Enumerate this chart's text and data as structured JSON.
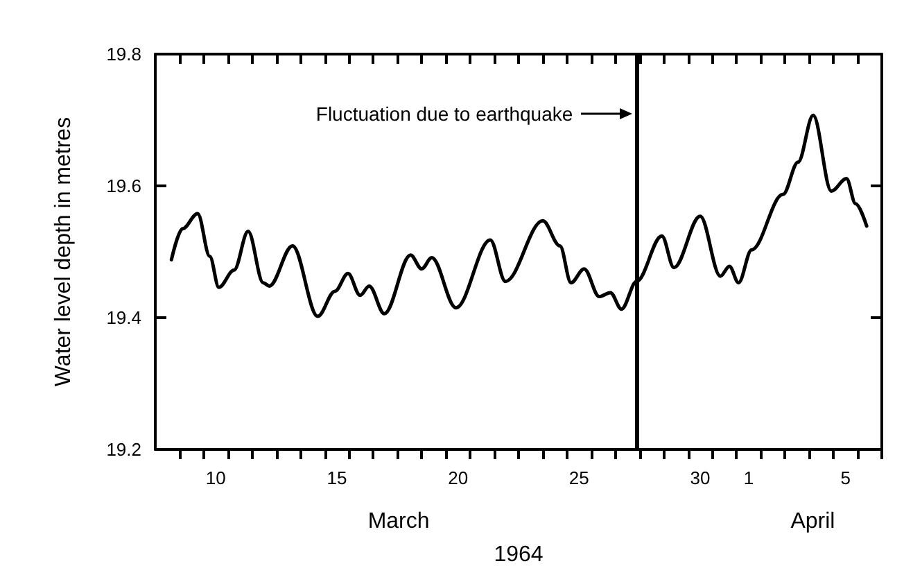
{
  "chart_data": {
    "type": "line",
    "ylabel": "Water level depth in metres",
    "xlabel": "1964",
    "annotations": [
      "Fluctuation due to earthquake",
      "March",
      "April"
    ],
    "x": [
      "1964-03-08T16:00",
      "1964-03-09T03:00",
      "1964-03-09T18:00",
      "1964-03-10T06:00",
      "1964-03-10T15:00",
      "1964-03-11T06:00",
      "1964-03-11T20:00",
      "1964-03-12T11:00",
      "1964-03-12T17:00",
      "1964-03-13T16:00",
      "1964-03-14T17:00",
      "1964-03-15T10:00",
      "1964-03-15T23:00",
      "1964-03-16T11:00",
      "1964-03-16T20:00",
      "1964-03-17T11:00",
      "1964-03-18T13:00",
      "1964-03-19T00:00",
      "1964-03-19T10:00",
      "1964-03-20T10:00",
      "1964-03-21T20:00",
      "1964-03-22T11:00",
      "1964-03-24T00:00",
      "1964-03-24T17:00",
      "1964-03-25T04:00",
      "1964-03-25T17:00",
      "1964-03-26T08:00",
      "1964-03-26T19:00",
      "1964-03-27T06:00",
      "1964-03-27T21:00",
      "1964-03-28T22:00",
      "1964-03-29T10:00",
      "1964-03-30T12:00",
      "1964-03-31T08:00",
      "1964-03-31T17:00",
      "1964-04-01T02:00",
      "1964-04-01T15:00",
      "1964-04-02T22:00",
      "1964-04-03T13:00",
      "1964-04-04T04:00",
      "1964-04-04T22:00",
      "1964-04-05T13:00",
      "1964-04-05T22:00",
      "1964-04-06T09:00"
    ],
    "series": [
      {
        "color": "#000000",
        "values": [
          19.488,
          19.535,
          19.558,
          19.493,
          19.446,
          19.472,
          19.531,
          19.453,
          19.448,
          19.509,
          19.402,
          19.44,
          19.467,
          19.434,
          19.448,
          19.406,
          19.495,
          19.474,
          19.491,
          19.415,
          19.518,
          19.455,
          19.547,
          19.509,
          19.453,
          19.474,
          19.432,
          19.438,
          19.413,
          19.455,
          19.524,
          19.476,
          19.554,
          19.463,
          19.478,
          19.453,
          19.503,
          19.587,
          19.636,
          19.707,
          19.592,
          19.611,
          19.573,
          19.539
        ]
      }
    ],
    "xlim": [
      "1964-03-08",
      "1964-04-07"
    ],
    "xticks": [
      {
        "value": "1964-03-09",
        "label": null
      },
      {
        "value": "1964-03-10",
        "label": null
      },
      {
        "value": "1964-03-10T12:00",
        "label": "10"
      },
      {
        "value": "1964-03-11",
        "label": null
      },
      {
        "value": "1964-03-12",
        "label": null
      },
      {
        "value": "1964-03-13",
        "label": null
      },
      {
        "value": "1964-03-14",
        "label": null
      },
      {
        "value": "1964-03-15",
        "label": null
      },
      {
        "value": "1964-03-15T12:00",
        "label": "15"
      },
      {
        "value": "1964-03-16",
        "label": null
      },
      {
        "value": "1964-03-17",
        "label": null
      },
      {
        "value": "1964-03-18",
        "label": null
      },
      {
        "value": "1964-03-19",
        "label": null
      },
      {
        "value": "1964-03-20",
        "label": null
      },
      {
        "value": "1964-03-20T12:00",
        "label": "20"
      },
      {
        "value": "1964-03-21",
        "label": null
      },
      {
        "value": "1964-03-22",
        "label": null
      },
      {
        "value": "1964-03-23",
        "label": null
      },
      {
        "value": "1964-03-24",
        "label": null
      },
      {
        "value": "1964-03-25",
        "label": null
      },
      {
        "value": "1964-03-25T12:00",
        "label": "25"
      },
      {
        "value": "1964-03-26",
        "label": null
      },
      {
        "value": "1964-03-27",
        "label": null
      },
      {
        "value": "1964-03-28",
        "label": null
      },
      {
        "value": "1964-03-29",
        "label": null
      },
      {
        "value": "1964-03-30",
        "label": null
      },
      {
        "value": "1964-03-30T12:00",
        "label": "30"
      },
      {
        "value": "1964-03-31",
        "label": null
      },
      {
        "value": "1964-04-01",
        "label": null
      },
      {
        "value": "1964-04-01T12:00",
        "label": "1"
      },
      {
        "value": "1964-04-02",
        "label": null
      },
      {
        "value": "1964-04-03",
        "label": null
      },
      {
        "value": "1964-04-04",
        "label": null
      },
      {
        "value": "1964-04-05",
        "label": null
      },
      {
        "value": "1964-04-05T12:00",
        "label": "5"
      },
      {
        "value": "1964-04-06",
        "label": null
      },
      {
        "value": "1964-04-07",
        "label": null
      }
    ],
    "ylim": [
      19.2,
      19.8
    ],
    "yticks": [
      19.2,
      19.4,
      19.6,
      19.8
    ],
    "ref_lines": [
      {
        "axis": "x",
        "value": "1964-03-27T21:00",
        "color": "#000000"
      }
    ],
    "marker": "none",
    "line_style": "solid",
    "grid": false
  }
}
